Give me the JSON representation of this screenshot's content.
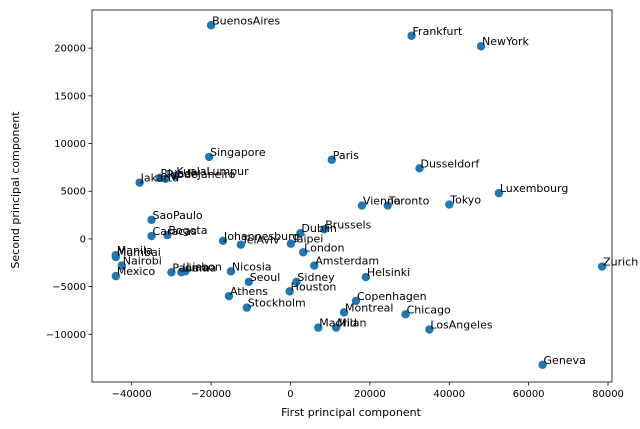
{
  "chart_data": {
    "type": "scatter",
    "title": "",
    "xlabel": "First principal component",
    "ylabel": "Second principal component",
    "xlim": [
      -50000,
      81000
    ],
    "ylim": [
      -15000,
      24000
    ],
    "xticks": [
      -40000,
      -20000,
      0,
      20000,
      40000,
      60000,
      80000
    ],
    "yticks": [
      -10000,
      -5000,
      0,
      5000,
      10000,
      15000,
      20000
    ],
    "xtick_labels": [
      "−40000",
      "−20000",
      "0",
      "20000",
      "40000",
      "60000",
      "80000"
    ],
    "ytick_labels": [
      "−10000",
      "−5000",
      "0",
      "5000",
      "10000",
      "15000",
      "20000"
    ],
    "grid": false,
    "legend": "none",
    "colors": {
      "marker": "#1f77b4",
      "axis": "#000000"
    },
    "points": [
      {
        "label": "BuenosAires",
        "x": -20000,
        "y": 22400
      },
      {
        "label": "Frankfurt",
        "x": 30500,
        "y": 21300
      },
      {
        "label": "NewYork",
        "x": 48000,
        "y": 20200
      },
      {
        "label": "Singapore",
        "x": -20500,
        "y": 8600
      },
      {
        "label": "Paris",
        "x": 10400,
        "y": 8300
      },
      {
        "label": "Dusseldorf",
        "x": 32500,
        "y": 7400
      },
      {
        "label": "Riyadh",
        "x": -33000,
        "y": 6400
      },
      {
        "label": "KualaLumpur",
        "x": -29000,
        "y": 6600
      },
      {
        "label": "RiodeJaneiro",
        "x": -31500,
        "y": 6300
      },
      {
        "label": "Jakarta",
        "x": -38000,
        "y": 5900
      },
      {
        "label": "Luxembourg",
        "x": 52500,
        "y": 4800
      },
      {
        "label": "Vienna",
        "x": 18000,
        "y": 3500
      },
      {
        "label": "Toronto",
        "x": 24500,
        "y": 3500
      },
      {
        "label": "Tokyo",
        "x": 40000,
        "y": 3600
      },
      {
        "label": "SaoPaulo",
        "x": -35000,
        "y": 2000
      },
      {
        "label": "Brussels",
        "x": 8500,
        "y": 1000
      },
      {
        "label": "Dublin",
        "x": 2500,
        "y": 600
      },
      {
        "label": "Caracas",
        "x": -35000,
        "y": 300
      },
      {
        "label": "Bogota",
        "x": -31000,
        "y": 400
      },
      {
        "label": "Johannesburg",
        "x": -17000,
        "y": -200
      },
      {
        "label": "TelAviv",
        "x": -12500,
        "y": -600
      },
      {
        "label": "Taipei",
        "x": 100,
        "y": -500
      },
      {
        "label": "London",
        "x": 3200,
        "y": -1400
      },
      {
        "label": "Manila",
        "x": -44000,
        "y": -1700
      },
      {
        "label": "Mumbai",
        "x": -44000,
        "y": -1900
      },
      {
        "label": "Nairobi",
        "x": -42500,
        "y": -2800
      },
      {
        "label": "Amsterdam",
        "x": 6000,
        "y": -2800
      },
      {
        "label": "Zurich",
        "x": 78500,
        "y": -2900
      },
      {
        "label": "Panama",
        "x": -30000,
        "y": -3500
      },
      {
        "label": "Lima",
        "x": -27500,
        "y": -3500
      },
      {
        "label": "Lisbon",
        "x": -26500,
        "y": -3400
      },
      {
        "label": "Nicosia",
        "x": -15000,
        "y": -3400
      },
      {
        "label": "Mexico",
        "x": -44000,
        "y": -3900
      },
      {
        "label": "Helsinki",
        "x": 19000,
        "y": -4000
      },
      {
        "label": "Seoul",
        "x": -10500,
        "y": -4500
      },
      {
        "label": "Sidney",
        "x": 1500,
        "y": -4500
      },
      {
        "label": "Houston",
        "x": -200,
        "y": -5500
      },
      {
        "label": "Athens",
        "x": -15500,
        "y": -6000
      },
      {
        "label": "Copenhagen",
        "x": 16500,
        "y": -6500
      },
      {
        "label": "Stockholm",
        "x": -11000,
        "y": -7200
      },
      {
        "label": "Montreal",
        "x": 13500,
        "y": -7700
      },
      {
        "label": "Chicago",
        "x": 29000,
        "y": -7900
      },
      {
        "label": "Madrid",
        "x": 7000,
        "y": -9300
      },
      {
        "label": "Milan",
        "x": 11500,
        "y": -9300
      },
      {
        "label": "LosAngeles",
        "x": 35000,
        "y": -9500
      },
      {
        "label": "Geneva",
        "x": 63500,
        "y": -13200
      }
    ]
  }
}
